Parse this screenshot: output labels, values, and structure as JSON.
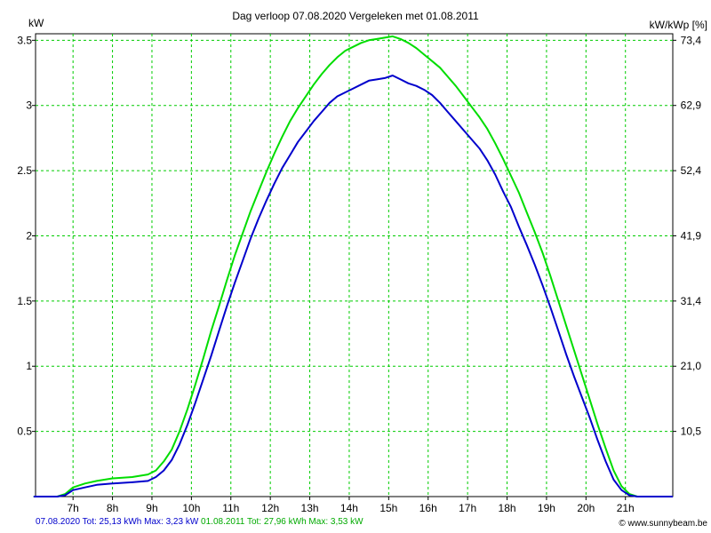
{
  "chart_data": {
    "type": "line",
    "title": "Dag  verloop 07.08.2020   Vergeleken met 01.08.2011",
    "ylabel_left": "kW",
    "ylabel_right": "kW/kWp [%]",
    "x_ticks": [
      "7h",
      "8h",
      "9h",
      "10h",
      "11h",
      "12h",
      "13h",
      "14h",
      "15h",
      "16h",
      "17h",
      "18h",
      "19h",
      "20h",
      "21h"
    ],
    "x_tick_hours": [
      7,
      8,
      9,
      10,
      11,
      12,
      13,
      14,
      15,
      16,
      17,
      18,
      19,
      20,
      21
    ],
    "x_range": [
      6.05,
      22.2
    ],
    "y_ticks_left": [
      "0.5",
      "1",
      "1.5",
      "2",
      "2.5",
      "3",
      "3.5"
    ],
    "y_tick_values": [
      0.5,
      1,
      1.5,
      2,
      2.5,
      3,
      3.5
    ],
    "y_ticks_right": [
      "10,5",
      "21,0",
      "31,4",
      "41,9",
      "52,4",
      "62,9",
      "73,4"
    ],
    "ylim": [
      0,
      3.55
    ],
    "grid": true,
    "series": [
      {
        "name": "07.08.2020",
        "color": "#0000cc",
        "x": [
          6.0,
          6.6,
          6.8,
          7.0,
          7.3,
          7.6,
          8.0,
          8.5,
          8.9,
          9.1,
          9.3,
          9.5,
          9.7,
          9.9,
          10.1,
          10.3,
          10.5,
          10.7,
          10.9,
          11.1,
          11.3,
          11.5,
          11.7,
          11.9,
          12.1,
          12.3,
          12.5,
          12.7,
          12.9,
          13.1,
          13.3,
          13.5,
          13.7,
          13.9,
          14.1,
          14.3,
          14.5,
          14.7,
          14.9,
          15.1,
          15.3,
          15.5,
          15.7,
          15.9,
          16.1,
          16.3,
          16.5,
          16.7,
          16.9,
          17.1,
          17.3,
          17.5,
          17.7,
          17.9,
          18.1,
          18.3,
          18.5,
          18.7,
          18.9,
          19.1,
          19.3,
          19.5,
          19.7,
          19.9,
          20.1,
          20.3,
          20.5,
          20.7,
          20.9,
          21.1,
          21.3,
          21.45,
          21.6,
          22.2
        ],
        "y": [
          0,
          0,
          0.01,
          0.05,
          0.07,
          0.09,
          0.1,
          0.11,
          0.12,
          0.15,
          0.2,
          0.28,
          0.4,
          0.55,
          0.72,
          0.9,
          1.08,
          1.27,
          1.46,
          1.64,
          1.81,
          1.98,
          2.13,
          2.27,
          2.4,
          2.52,
          2.62,
          2.72,
          2.8,
          2.88,
          2.95,
          3.02,
          3.07,
          3.1,
          3.13,
          3.16,
          3.19,
          3.2,
          3.21,
          3.23,
          3.2,
          3.17,
          3.15,
          3.12,
          3.08,
          3.02,
          2.95,
          2.88,
          2.81,
          2.74,
          2.67,
          2.58,
          2.47,
          2.34,
          2.22,
          2.07,
          1.93,
          1.78,
          1.62,
          1.45,
          1.27,
          1.09,
          0.92,
          0.76,
          0.6,
          0.43,
          0.27,
          0.13,
          0.05,
          0.01,
          0,
          0,
          0,
          0
        ]
      },
      {
        "name": "01.08.2011",
        "color": "#00dd00",
        "x": [
          6.0,
          6.6,
          6.8,
          7.0,
          7.3,
          7.6,
          8.0,
          8.5,
          8.9,
          9.1,
          9.3,
          9.5,
          9.7,
          9.9,
          10.1,
          10.3,
          10.5,
          10.7,
          10.9,
          11.1,
          11.3,
          11.5,
          11.7,
          11.9,
          12.1,
          12.3,
          12.5,
          12.7,
          12.9,
          13.1,
          13.3,
          13.5,
          13.7,
          13.9,
          14.1,
          14.3,
          14.5,
          14.7,
          14.9,
          15.1,
          15.3,
          15.5,
          15.7,
          15.9,
          16.1,
          16.3,
          16.5,
          16.7,
          16.9,
          17.1,
          17.3,
          17.5,
          17.7,
          17.9,
          18.1,
          18.3,
          18.5,
          18.7,
          18.9,
          19.1,
          19.3,
          19.5,
          19.7,
          19.9,
          20.1,
          20.3,
          20.5,
          20.7,
          20.9,
          21.1,
          21.3,
          21.45,
          21.6,
          22.2
        ],
        "y": [
          0,
          0,
          0.02,
          0.07,
          0.1,
          0.12,
          0.14,
          0.15,
          0.17,
          0.2,
          0.27,
          0.36,
          0.5,
          0.67,
          0.86,
          1.06,
          1.27,
          1.46,
          1.66,
          1.85,
          2.02,
          2.19,
          2.34,
          2.49,
          2.63,
          2.76,
          2.88,
          2.98,
          3.07,
          3.16,
          3.24,
          3.31,
          3.37,
          3.42,
          3.45,
          3.48,
          3.5,
          3.51,
          3.52,
          3.53,
          3.51,
          3.48,
          3.44,
          3.39,
          3.34,
          3.29,
          3.22,
          3.15,
          3.07,
          2.99,
          2.91,
          2.82,
          2.71,
          2.59,
          2.46,
          2.33,
          2.18,
          2.03,
          1.87,
          1.69,
          1.5,
          1.31,
          1.12,
          0.93,
          0.74,
          0.55,
          0.37,
          0.2,
          0.08,
          0.02,
          0,
          0,
          0,
          0
        ]
      }
    ]
  },
  "footer": {
    "series1_text": "07.08.2020 Tot: 25,13 kWh Max: 3,23 kW",
    "series2_text": "01.08.2011 Tot: 27,96 kWh Max: 3,53 kW",
    "credit": "© www.sunnybeam.be"
  }
}
